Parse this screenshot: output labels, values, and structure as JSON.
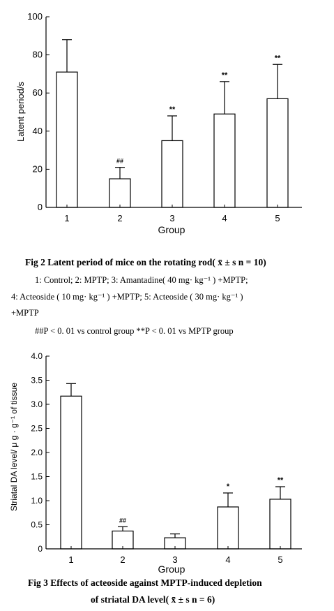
{
  "figures": [
    {
      "caption_title": "Fig 2   Latent period of mice on the rotating rod( x̄ ± s  n = 10)",
      "caption_lines": [
        "1: Control; 2: MPTP; 3: Amantadine( 40 mg· kg⁻¹ ) +MPTP;",
        "4: Acteoside ( 10 mg· kg⁻¹ ) +MPTP; 5: Acteoside ( 30 mg· kg⁻¹ )",
        "+MPTP",
        "##P < 0. 01 vs control group  **P < 0. 01 vs MPTP group"
      ]
    },
    {
      "caption_title": "Fig 3   Effects of acteoside against MPTP-induced depletion",
      "caption_lines": [
        "of striatal DA level( x̄ ± s  n = 6)"
      ]
    }
  ],
  "chart_data": [
    {
      "type": "bar",
      "categories": [
        "1",
        "2",
        "3",
        "4",
        "5"
      ],
      "values": [
        71,
        15,
        35,
        49,
        57
      ],
      "errors": [
        17,
        6,
        13,
        17,
        18
      ],
      "annotations": [
        "",
        "##",
        "**",
        "**",
        "**"
      ],
      "xlabel": "Group",
      "ylabel": "Latent period/s",
      "ylim": [
        0,
        100
      ],
      "yticks": [
        "0",
        "20",
        "40",
        "60",
        "80",
        "100"
      ],
      "grid": false
    },
    {
      "type": "bar",
      "categories": [
        "1",
        "2",
        "3",
        "4",
        "5"
      ],
      "values": [
        3.17,
        0.37,
        0.23,
        0.87,
        1.03
      ],
      "errors": [
        0.26,
        0.09,
        0.08,
        0.29,
        0.26
      ],
      "annotations": [
        "",
        "##",
        "",
        "*",
        "**"
      ],
      "xlabel": "Group",
      "ylabel": "Striatal DA level/ μ g · g⁻¹ of tissue",
      "ylim": [
        0,
        4
      ],
      "yticks": [
        "0",
        "0.5",
        "1.0",
        "1.5",
        "2.0",
        "2.5",
        "3.0",
        "3.5",
        "4.0"
      ],
      "grid": false
    }
  ]
}
